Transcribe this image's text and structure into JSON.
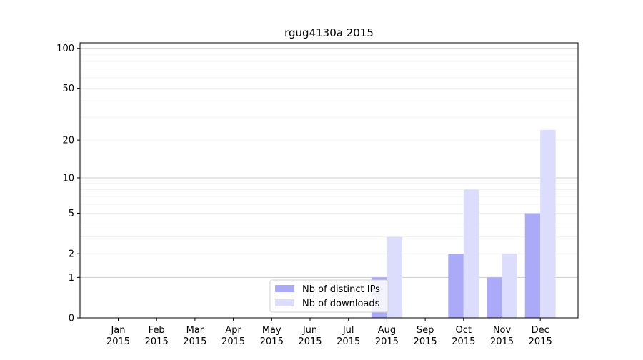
{
  "chart_data": {
    "type": "bar",
    "title": "rgug4130a 2015",
    "xlabel": "",
    "ylabel": "",
    "y_scale": "symlog",
    "ylim": [
      0,
      110
    ],
    "y_ticks": [
      0,
      1,
      2,
      5,
      10,
      20,
      50,
      100
    ],
    "grid": "y-major-and-minor",
    "legend_placement": "bottom-center",
    "categories": [
      "Jan\n2015",
      "Feb\n2015",
      "Mar\n2015",
      "Apr\n2015",
      "May\n2015",
      "Jun\n2015",
      "Jul\n2015",
      "Aug\n2015",
      "Sep\n2015",
      "Oct\n2015",
      "Nov\n2015",
      "Dec\n2015"
    ],
    "series": [
      {
        "name": "Nb of distinct IPs",
        "color": "#aaaaf9",
        "values": [
          0,
          0,
          0,
          0,
          0,
          0,
          0,
          1,
          0,
          2,
          1,
          5
        ]
      },
      {
        "name": "Nb of downloads",
        "color": "#dcdcfd",
        "values": [
          0,
          0,
          0,
          0,
          0,
          0,
          0,
          3,
          0,
          8,
          2,
          24
        ]
      }
    ]
  }
}
